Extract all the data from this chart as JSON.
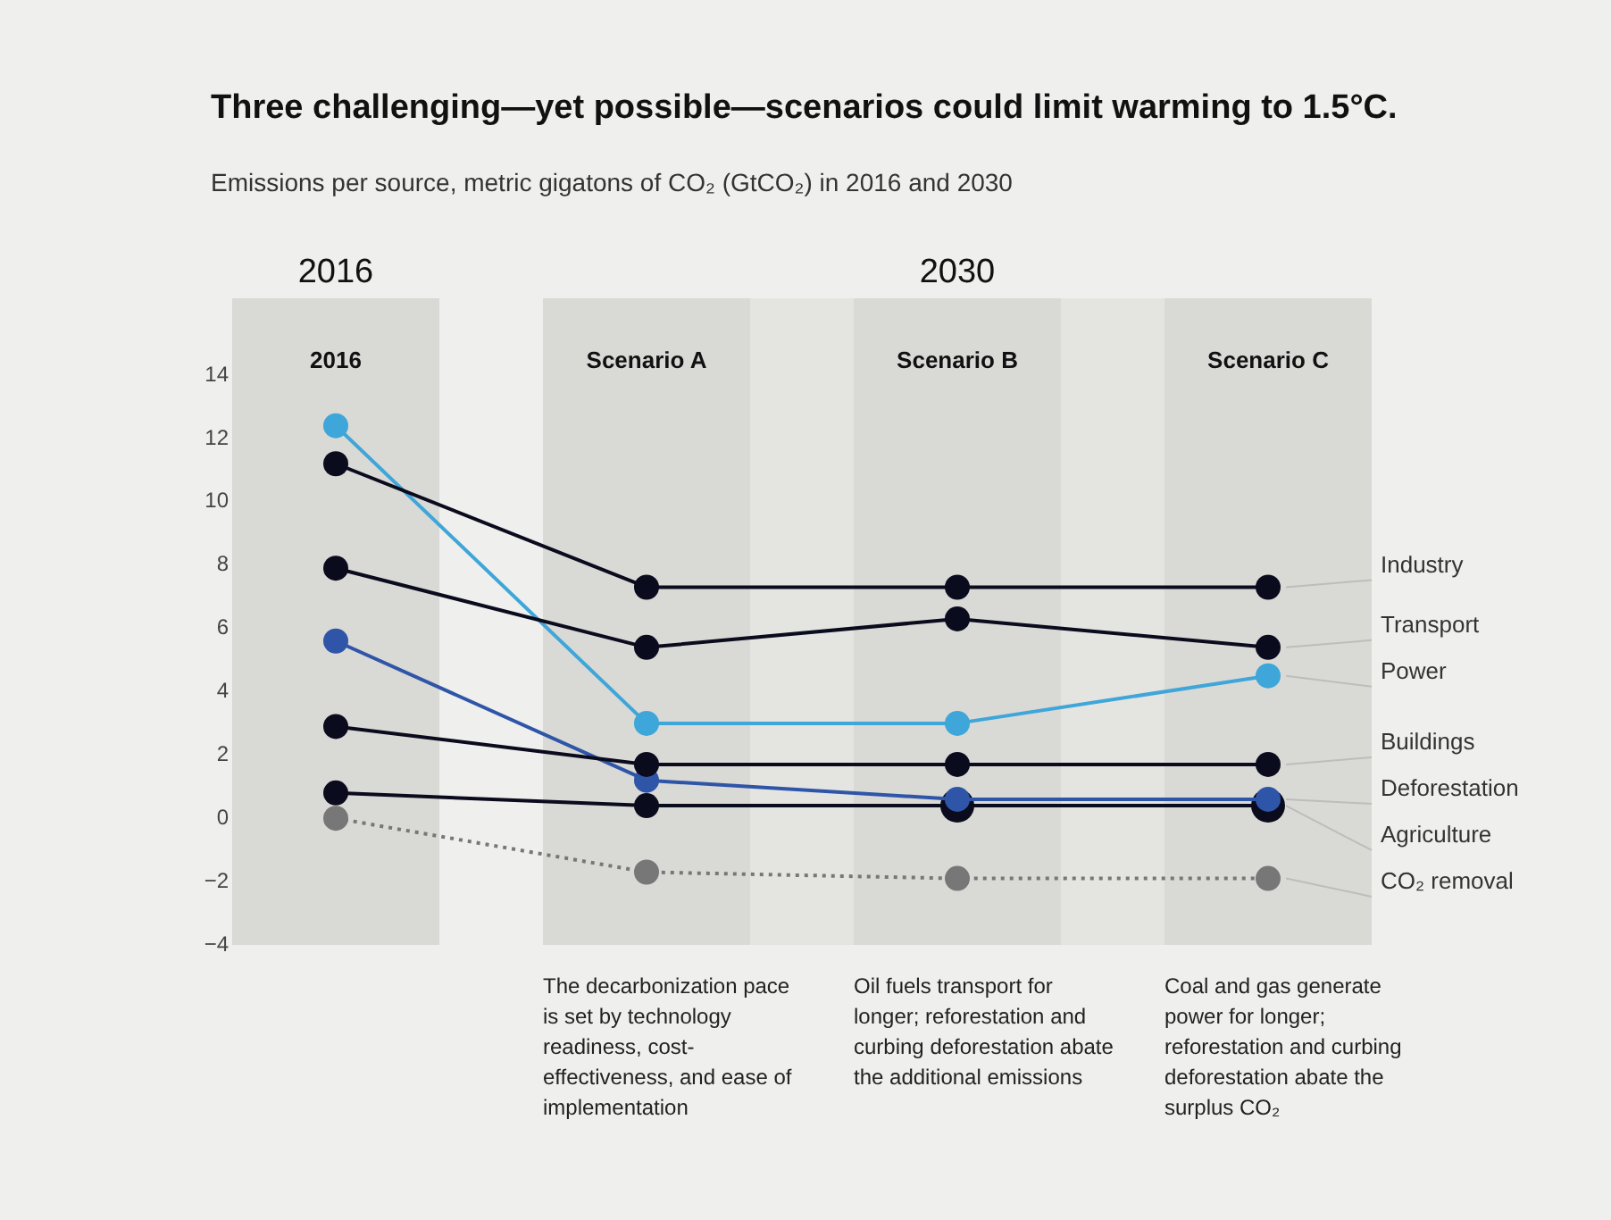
{
  "chart_data": {
    "type": "line",
    "title": "Three challenging—yet possible—scenarios could limit warming to 1.5°C.",
    "subtitle": "Emissions per source, metric gigatons of CO₂ (GtCO₂) in 2016 and 2030",
    "categories": [
      "2016",
      "Scenario A",
      "Scenario B",
      "Scenario C"
    ],
    "series": [
      {
        "name": "Industry",
        "color": "#0b0b1e",
        "values": [
          11.2,
          7.3,
          7.3,
          7.3
        ]
      },
      {
        "name": "Transport",
        "color": "#0b0b1e",
        "values": [
          7.9,
          5.4,
          6.3,
          5.4
        ]
      },
      {
        "name": "Power",
        "color": "#3ea6d8",
        "values": [
          12.4,
          3.0,
          3.0,
          4.5
        ]
      },
      {
        "name": "Buildings",
        "color": "#0b0b1e",
        "values": [
          2.9,
          1.7,
          1.7,
          1.7
        ]
      },
      {
        "name": "Deforestation",
        "color": "#2f55a8",
        "values": [
          5.6,
          1.2,
          0.6,
          0.6
        ]
      },
      {
        "name": "Agriculture",
        "color": "#0b0b1e",
        "values": [
          0.8,
          0.4,
          0.4,
          0.4
        ]
      },
      {
        "name": "CO₂ removal",
        "color": "#777777",
        "values": [
          0,
          -1.7,
          -1.9,
          -1.9
        ],
        "line_style": "dotted"
      }
    ],
    "ylim": [
      -4,
      14
    ],
    "yticks": [
      -4,
      -2,
      0,
      2,
      4,
      6,
      8,
      10,
      12,
      14
    ],
    "grid": false,
    "legend": false,
    "marker": "circle",
    "line_style": "solid",
    "annotations": [
      "2016",
      "2030",
      "The decarbonization pace is set by technology readiness, cost-effectiveness, and ease of implementation",
      "Oil fuels transport for longer; reforestation and curbing deforestation abate the additional emissions",
      "Coal and gas generate power for longer; reforestation and curbing deforestation abate the surplus CO₂"
    ]
  }
}
